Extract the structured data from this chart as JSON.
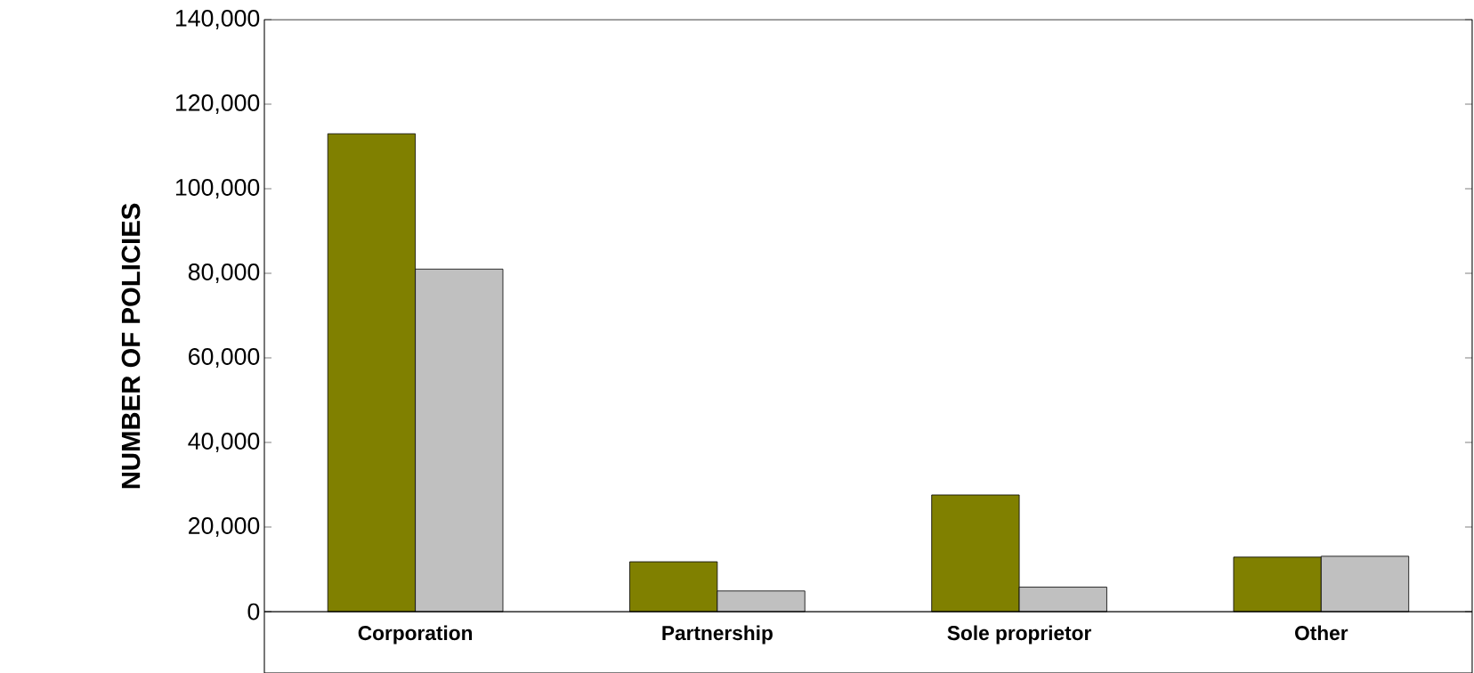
{
  "chart_data": {
    "type": "bar",
    "ylabel": "NUMBER OF POLICIES",
    "categories": [
      "Corporation",
      "Partnership",
      "Sole proprietor",
      "Other"
    ],
    "series": [
      {
        "color": "#808000",
        "values": [
          113000,
          11800,
          27600,
          12900
        ]
      },
      {
        "color": "#c0c0c0",
        "values": [
          81000,
          4900,
          5800,
          13100
        ]
      }
    ],
    "ylim": [
      -14500,
      140000
    ],
    "yticks": [
      {
        "value": 0,
        "label": "0"
      },
      {
        "value": 20000,
        "label": "20,000"
      },
      {
        "value": 40000,
        "label": "40,000"
      },
      {
        "value": 60000,
        "label": "60,000"
      },
      {
        "value": 80000,
        "label": "80,000"
      },
      {
        "value": 100000,
        "label": "100,000"
      },
      {
        "value": 120000,
        "label": "120,000"
      },
      {
        "value": 140000,
        "label": "140,000"
      }
    ]
  }
}
